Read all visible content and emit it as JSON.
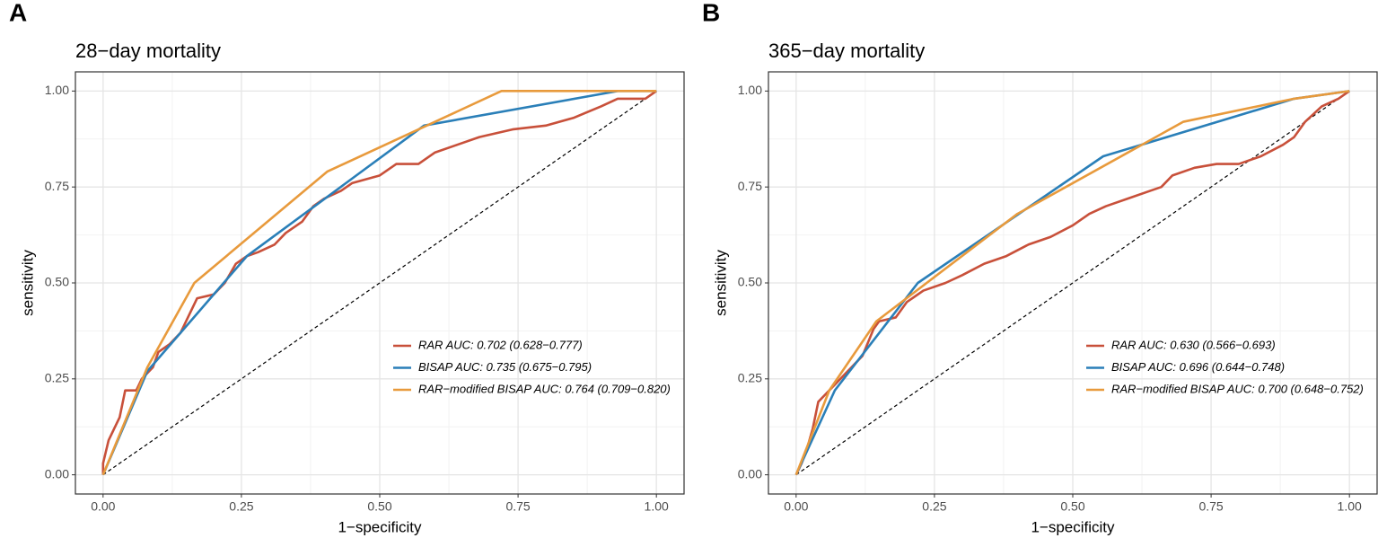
{
  "chart_data": [
    {
      "type": "line",
      "panel": "A",
      "title": "28−day mortality",
      "xlabel": "1−specificity",
      "ylabel": "sensitivity",
      "xlim": [
        -0.05,
        1.05
      ],
      "ylim": [
        -0.05,
        1.05
      ],
      "xticks": [
        {
          "value": 0,
          "label": "0.00"
        },
        {
          "value": 0.25,
          "label": "0.25"
        },
        {
          "value": 0.5,
          "label": "0.50"
        },
        {
          "value": 0.75,
          "label": "0.75"
        },
        {
          "value": 1,
          "label": "1.00"
        }
      ],
      "yticks": [
        {
          "value": 0,
          "label": "0.00"
        },
        {
          "value": 0.25,
          "label": "0.25"
        },
        {
          "value": 0.5,
          "label": "0.50"
        },
        {
          "value": 0.75,
          "label": "0.75"
        },
        {
          "value": 1,
          "label": "1.00"
        }
      ],
      "grid": true,
      "diagonal": true,
      "legend": "bottom-right",
      "series": [
        {
          "name": "RAR AUC: 0.702 (0.628−0.777)",
          "color": "#c8503a",
          "x": [
            0,
            0,
            0.005,
            0.01,
            0.02,
            0.03,
            0.04,
            0.06,
            0.07,
            0.09,
            0.1,
            0.12,
            0.14,
            0.15,
            0.17,
            0.2,
            0.22,
            0.24,
            0.26,
            0.28,
            0.31,
            0.33,
            0.36,
            0.38,
            0.4,
            0.43,
            0.45,
            0.5,
            0.53,
            0.57,
            0.6,
            0.64,
            0.68,
            0.74,
            0.8,
            0.85,
            0.9,
            0.93,
            0.98,
            1
          ],
          "values": [
            0,
            0.03,
            0.06,
            0.09,
            0.12,
            0.15,
            0.22,
            0.22,
            0.25,
            0.28,
            0.32,
            0.34,
            0.37,
            0.4,
            0.46,
            0.47,
            0.5,
            0.55,
            0.57,
            0.58,
            0.6,
            0.63,
            0.66,
            0.7,
            0.72,
            0.74,
            0.76,
            0.78,
            0.81,
            0.81,
            0.84,
            0.86,
            0.88,
            0.9,
            0.91,
            0.93,
            0.96,
            0.98,
            0.98,
            1
          ]
        },
        {
          "name": "BISAP AUC: 0.735 (0.675−0.795)",
          "color": "#2a7fb8",
          "x": [
            0,
            0.08,
            0.26,
            0.58,
            0.93,
            1
          ],
          "values": [
            0,
            0.27,
            0.57,
            0.91,
            1,
            1
          ]
        },
        {
          "name": "RAR−modified BISAP AUC: 0.764 (0.709−0.820)",
          "color": "#e89a3c",
          "x": [
            0,
            0.08,
            0.165,
            0.405,
            0.72,
            1
          ],
          "values": [
            0,
            0.28,
            0.5,
            0.79,
            1,
            1
          ]
        }
      ]
    },
    {
      "type": "line",
      "panel": "B",
      "title": "365−day mortality",
      "xlabel": "1−specificity",
      "ylabel": "sensitivity",
      "xlim": [
        -0.05,
        1.05
      ],
      "ylim": [
        -0.05,
        1.05
      ],
      "xticks": [
        {
          "value": 0,
          "label": "0.00"
        },
        {
          "value": 0.25,
          "label": "0.25"
        },
        {
          "value": 0.5,
          "label": "0.50"
        },
        {
          "value": 0.75,
          "label": "0.75"
        },
        {
          "value": 1,
          "label": "1.00"
        }
      ],
      "yticks": [
        {
          "value": 0,
          "label": "0.00"
        },
        {
          "value": 0.25,
          "label": "0.25"
        },
        {
          "value": 0.5,
          "label": "0.50"
        },
        {
          "value": 0.75,
          "label": "0.75"
        },
        {
          "value": 1,
          "label": "1.00"
        }
      ],
      "grid": true,
      "diagonal": true,
      "legend": "bottom-right",
      "series": [
        {
          "name": "RAR AUC: 0.630 (0.566−0.693)",
          "color": "#c8503a",
          "x": [
            0,
            0.01,
            0.02,
            0.03,
            0.04,
            0.06,
            0.08,
            0.1,
            0.12,
            0.14,
            0.15,
            0.18,
            0.2,
            0.23,
            0.27,
            0.3,
            0.34,
            0.38,
            0.42,
            0.46,
            0.5,
            0.53,
            0.56,
            0.6,
            0.64,
            0.66,
            0.68,
            0.72,
            0.76,
            0.8,
            0.84,
            0.88,
            0.9,
            0.92,
            0.95,
            0.98,
            1
          ],
          "values": [
            0,
            0.03,
            0.07,
            0.12,
            0.19,
            0.22,
            0.25,
            0.28,
            0.31,
            0.38,
            0.4,
            0.41,
            0.45,
            0.48,
            0.5,
            0.52,
            0.55,
            0.57,
            0.6,
            0.62,
            0.65,
            0.68,
            0.7,
            0.72,
            0.74,
            0.75,
            0.78,
            0.8,
            0.81,
            0.81,
            0.83,
            0.86,
            0.88,
            0.92,
            0.96,
            0.98,
            1
          ]
        },
        {
          "name": "BISAP AUC: 0.696 (0.644−0.748)",
          "color": "#2a7fb8",
          "x": [
            0,
            0.07,
            0.22,
            0.555,
            0.9,
            1
          ],
          "values": [
            0,
            0.22,
            0.5,
            0.83,
            0.98,
            1
          ]
        },
        {
          "name": "RAR−modified BISAP AUC: 0.700 (0.648−0.752)",
          "color": "#e89a3c",
          "x": [
            0,
            0.06,
            0.145,
            0.4,
            0.7,
            0.9,
            1
          ],
          "values": [
            0,
            0.22,
            0.4,
            0.68,
            0.92,
            0.98,
            1
          ]
        }
      ]
    }
  ]
}
